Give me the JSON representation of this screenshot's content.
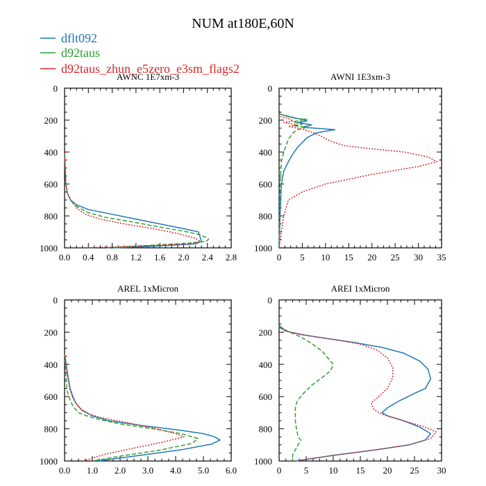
{
  "title": "NUM at180E,60N",
  "colors": {
    "dflt092": "#1f77b4",
    "d92taus": "#2ca02c",
    "d92taus_zhun_e5zero_e3sm_flags2": "#d62728"
  },
  "legend": [
    {
      "name": "dflt092",
      "color": "#1f77b4",
      "dash": ""
    },
    {
      "name": "d92taus",
      "color": "#2ca02c",
      "dash": "6,3"
    },
    {
      "name": "d92taus_zhun_e5zero_e3sm_flags2",
      "color": "#d62728",
      "dash": "2,2"
    }
  ],
  "chart_data": [
    {
      "type": "line",
      "title": "AWNC  1E7xm-3",
      "xlim": [
        0,
        2.8
      ],
      "xticks": [
        0,
        0.4,
        0.8,
        1.2,
        1.6,
        2.0,
        2.4,
        2.8
      ],
      "xticklabels": [
        "0.0",
        "0.4",
        "0.8",
        "1.2",
        "1.6",
        "2.0",
        "2.4",
        "2.8"
      ],
      "ylim": [
        0,
        1000
      ],
      "yticks": [
        0,
        200,
        400,
        600,
        800,
        1000
      ],
      "series": [
        {
          "name": "dflt092",
          "x": [
            0,
            0.01,
            0.02,
            0.05,
            0.1,
            0.2,
            0.4,
            0.8,
            1.2,
            1.6,
            2.0,
            2.25,
            2.28,
            2.3,
            2.2,
            1.5,
            0.8
          ],
          "y": [
            400,
            500,
            600,
            660,
            700,
            730,
            760,
            790,
            820,
            850,
            880,
            900,
            935,
            960,
            975,
            990,
            1000
          ]
        },
        {
          "name": "d92taus",
          "x": [
            0,
            0.02,
            0.05,
            0.1,
            0.2,
            0.4,
            0.7,
            1.1,
            1.6,
            2.0,
            2.3,
            2.42,
            2.38,
            2.1,
            1.4,
            0.7
          ],
          "y": [
            400,
            600,
            660,
            700,
            740,
            780,
            810,
            835,
            870,
            895,
            920,
            945,
            960,
            970,
            985,
            1000
          ]
        },
        {
          "name": "d92taus_zhun_e5zero_e3sm_flags2",
          "x": [
            0,
            0.02,
            0.05,
            0.1,
            0.2,
            0.35,
            0.6,
            1.0,
            1.5,
            1.9,
            2.2,
            2.28,
            2.1,
            1.5,
            0.8,
            0.3
          ],
          "y": [
            400,
            600,
            660,
            700,
            750,
            790,
            820,
            850,
            880,
            910,
            940,
            960,
            975,
            985,
            995,
            1000
          ]
        }
      ]
    },
    {
      "type": "line",
      "title": "AWNI  1E3xm-3",
      "xlim": [
        0,
        35
      ],
      "xticks": [
        0,
        5,
        10,
        15,
        20,
        25,
        30,
        35
      ],
      "xticklabels": [
        "0",
        "5",
        "10",
        "15",
        "20",
        "25",
        "30",
        "35"
      ],
      "ylim": [
        0,
        1000
      ],
      "yticks": [
        0,
        200,
        400,
        600,
        800,
        1000
      ],
      "series": [
        {
          "name": "dflt092",
          "x": [
            0,
            1,
            3,
            5,
            6,
            4,
            7,
            5,
            12,
            8,
            6,
            5,
            4,
            3,
            2,
            1,
            0.5,
            0.2,
            0
          ],
          "y": [
            160,
            170,
            185,
            195,
            205,
            215,
            230,
            245,
            260,
            280,
            310,
            340,
            370,
            410,
            460,
            520,
            600,
            800,
            1000
          ]
        },
        {
          "name": "d92taus",
          "x": [
            0,
            2,
            4,
            6,
            3,
            5,
            3,
            6,
            4,
            3,
            2,
            1.5,
            1,
            0.5,
            0.2,
            0
          ],
          "y": [
            160,
            175,
            190,
            195,
            210,
            225,
            235,
            245,
            260,
            280,
            320,
            360,
            400,
            460,
            600,
            1000
          ]
        },
        {
          "name": "d92taus_zhun_e5zero_e3sm_flags2",
          "x": [
            0,
            0.5,
            2,
            3,
            1,
            4,
            2,
            5,
            7,
            9,
            11,
            14,
            20,
            27,
            32,
            34,
            30,
            20,
            10,
            5,
            2,
            1,
            0.5,
            0
          ],
          "y": [
            160,
            180,
            190,
            205,
            215,
            230,
            240,
            255,
            275,
            300,
            330,
            360,
            380,
            400,
            430,
            460,
            490,
            540,
            600,
            650,
            700,
            800,
            900,
            1000
          ]
        }
      ]
    },
    {
      "type": "line",
      "title": "AREL  1xMicron",
      "xlim": [
        0,
        6
      ],
      "xticks": [
        0,
        1,
        2,
        3,
        4,
        5,
        6
      ],
      "xticklabels": [
        "0.0",
        "1.0",
        "2.0",
        "3.0",
        "4.0",
        "5.0",
        "6.0"
      ],
      "ylim": [
        0,
        1000
      ],
      "yticks": [
        0,
        200,
        400,
        600,
        800,
        1000
      ],
      "series": [
        {
          "name": "dflt092",
          "x": [
            0,
            0.1,
            0.2,
            0.3,
            0.4,
            0.6,
            0.8,
            1.0,
            1.6,
            2.8,
            4.2,
            5.0,
            5.4,
            5.6,
            5.3,
            4.2,
            2.5,
            1.2
          ],
          "y": [
            330,
            450,
            550,
            600,
            640,
            680,
            700,
            720,
            750,
            780,
            810,
            830,
            850,
            870,
            895,
            930,
            970,
            1000
          ]
        },
        {
          "name": "d92taus",
          "x": [
            0,
            0.05,
            0.1,
            0.2,
            0.3,
            0.5,
            0.8,
            1.2,
            2.0,
            3.2,
            4.2,
            4.8,
            4.6,
            3.5,
            2.0,
            1.0
          ],
          "y": [
            330,
            480,
            570,
            620,
            660,
            700,
            720,
            740,
            770,
            800,
            830,
            860,
            890,
            930,
            970,
            1000
          ]
        },
        {
          "name": "d92taus_zhun_e5zero_e3sm_flags2",
          "x": [
            0,
            0.1,
            0.2,
            0.3,
            0.45,
            0.65,
            0.9,
            1.3,
            2.2,
            3.3,
            4.0,
            4.3,
            3.6,
            2.5,
            1.4,
            0.7
          ],
          "y": [
            330,
            470,
            560,
            610,
            650,
            690,
            710,
            730,
            760,
            800,
            830,
            850,
            880,
            920,
            960,
            1000
          ]
        }
      ]
    },
    {
      "type": "line",
      "title": "AREI  1xMicron",
      "xlim": [
        0,
        30
      ],
      "xticks": [
        0,
        5,
        10,
        15,
        20,
        25,
        30
      ],
      "xticklabels": [
        "0",
        "5",
        "10",
        "15",
        "20",
        "25",
        "30"
      ],
      "ylim": [
        0,
        1000
      ],
      "yticks": [
        0,
        200,
        400,
        600,
        800,
        1000
      ],
      "series": [
        {
          "name": "dflt092",
          "x": [
            0,
            1,
            2,
            5,
            9,
            14,
            19,
            23,
            26,
            27.5,
            28,
            27,
            25,
            22,
            20,
            19,
            20,
            23,
            26,
            28,
            27,
            24,
            18,
            10,
            3
          ],
          "y": [
            160,
            185,
            200,
            220,
            240,
            265,
            295,
            330,
            380,
            430,
            490,
            550,
            580,
            630,
            670,
            700,
            720,
            750,
            790,
            830,
            870,
            900,
            930,
            965,
            1000
          ]
        },
        {
          "name": "d92taus",
          "x": [
            0,
            1,
            2,
            4,
            6,
            8,
            9,
            10,
            9.5,
            8,
            6,
            4.5,
            3.5,
            3,
            3,
            3,
            3.2,
            3.5,
            4,
            3.5,
            3,
            2.5,
            2.5
          ],
          "y": [
            170,
            190,
            200,
            230,
            270,
            320,
            360,
            400,
            440,
            480,
            530,
            580,
            620,
            660,
            700,
            750,
            800,
            850,
            870,
            900,
            930,
            960,
            1000
          ]
        },
        {
          "name": "d92taus_zhun_e5zero_e3sm_flags2",
          "x": [
            0,
            1,
            2,
            4,
            7,
            11,
            15,
            18,
            20,
            21,
            21,
            20,
            19,
            18,
            17,
            17.5,
            19,
            23,
            27,
            29,
            28,
            24,
            18,
            10,
            3
          ],
          "y": [
            170,
            190,
            200,
            215,
            230,
            250,
            275,
            310,
            360,
            420,
            480,
            550,
            580,
            610,
            640,
            680,
            710,
            750,
            790,
            820,
            860,
            900,
            930,
            965,
            1000
          ]
        }
      ]
    }
  ]
}
